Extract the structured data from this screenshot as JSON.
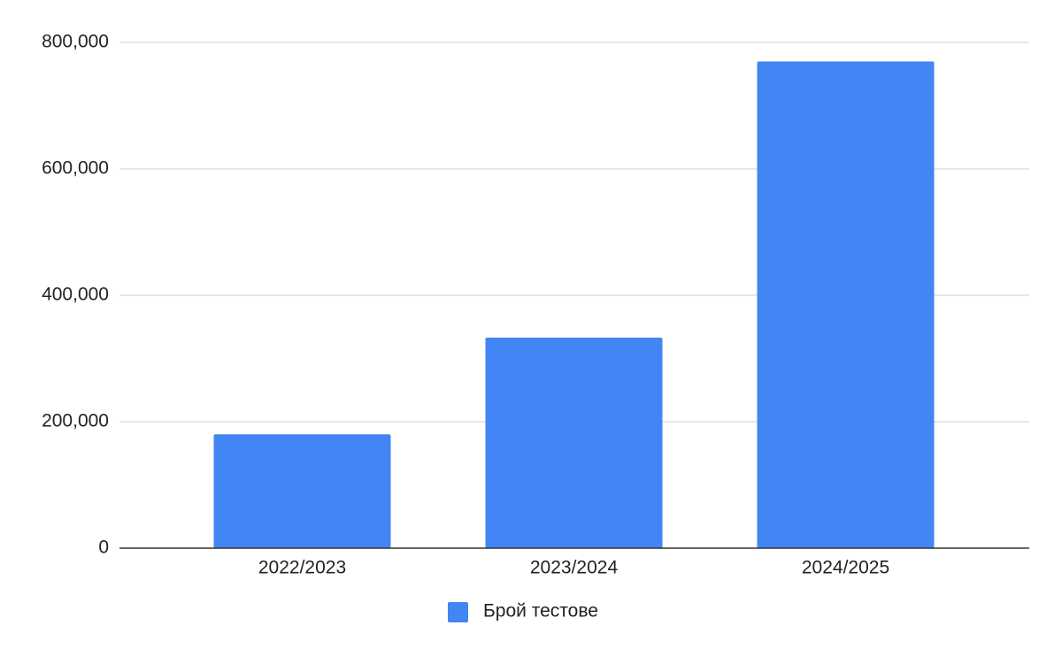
{
  "chart_data": {
    "type": "bar",
    "categories": [
      "2022/2023",
      "2023/2024",
      "2024/2025"
    ],
    "series": [
      {
        "name": "Брой тестове",
        "color": "#4285f4",
        "values": [
          180000,
          333000,
          770000
        ]
      }
    ],
    "ylim": [
      0,
      800000
    ],
    "yticks": [
      0,
      {
        "value": 200000,
        "label": "200,000"
      },
      {
        "value": 400000,
        "label": "400,000"
      },
      {
        "value": 600000,
        "label": "600,000"
      },
      {
        "value": 800000,
        "label": "800,000"
      }
    ],
    "grid": true,
    "legend": "bottom"
  }
}
